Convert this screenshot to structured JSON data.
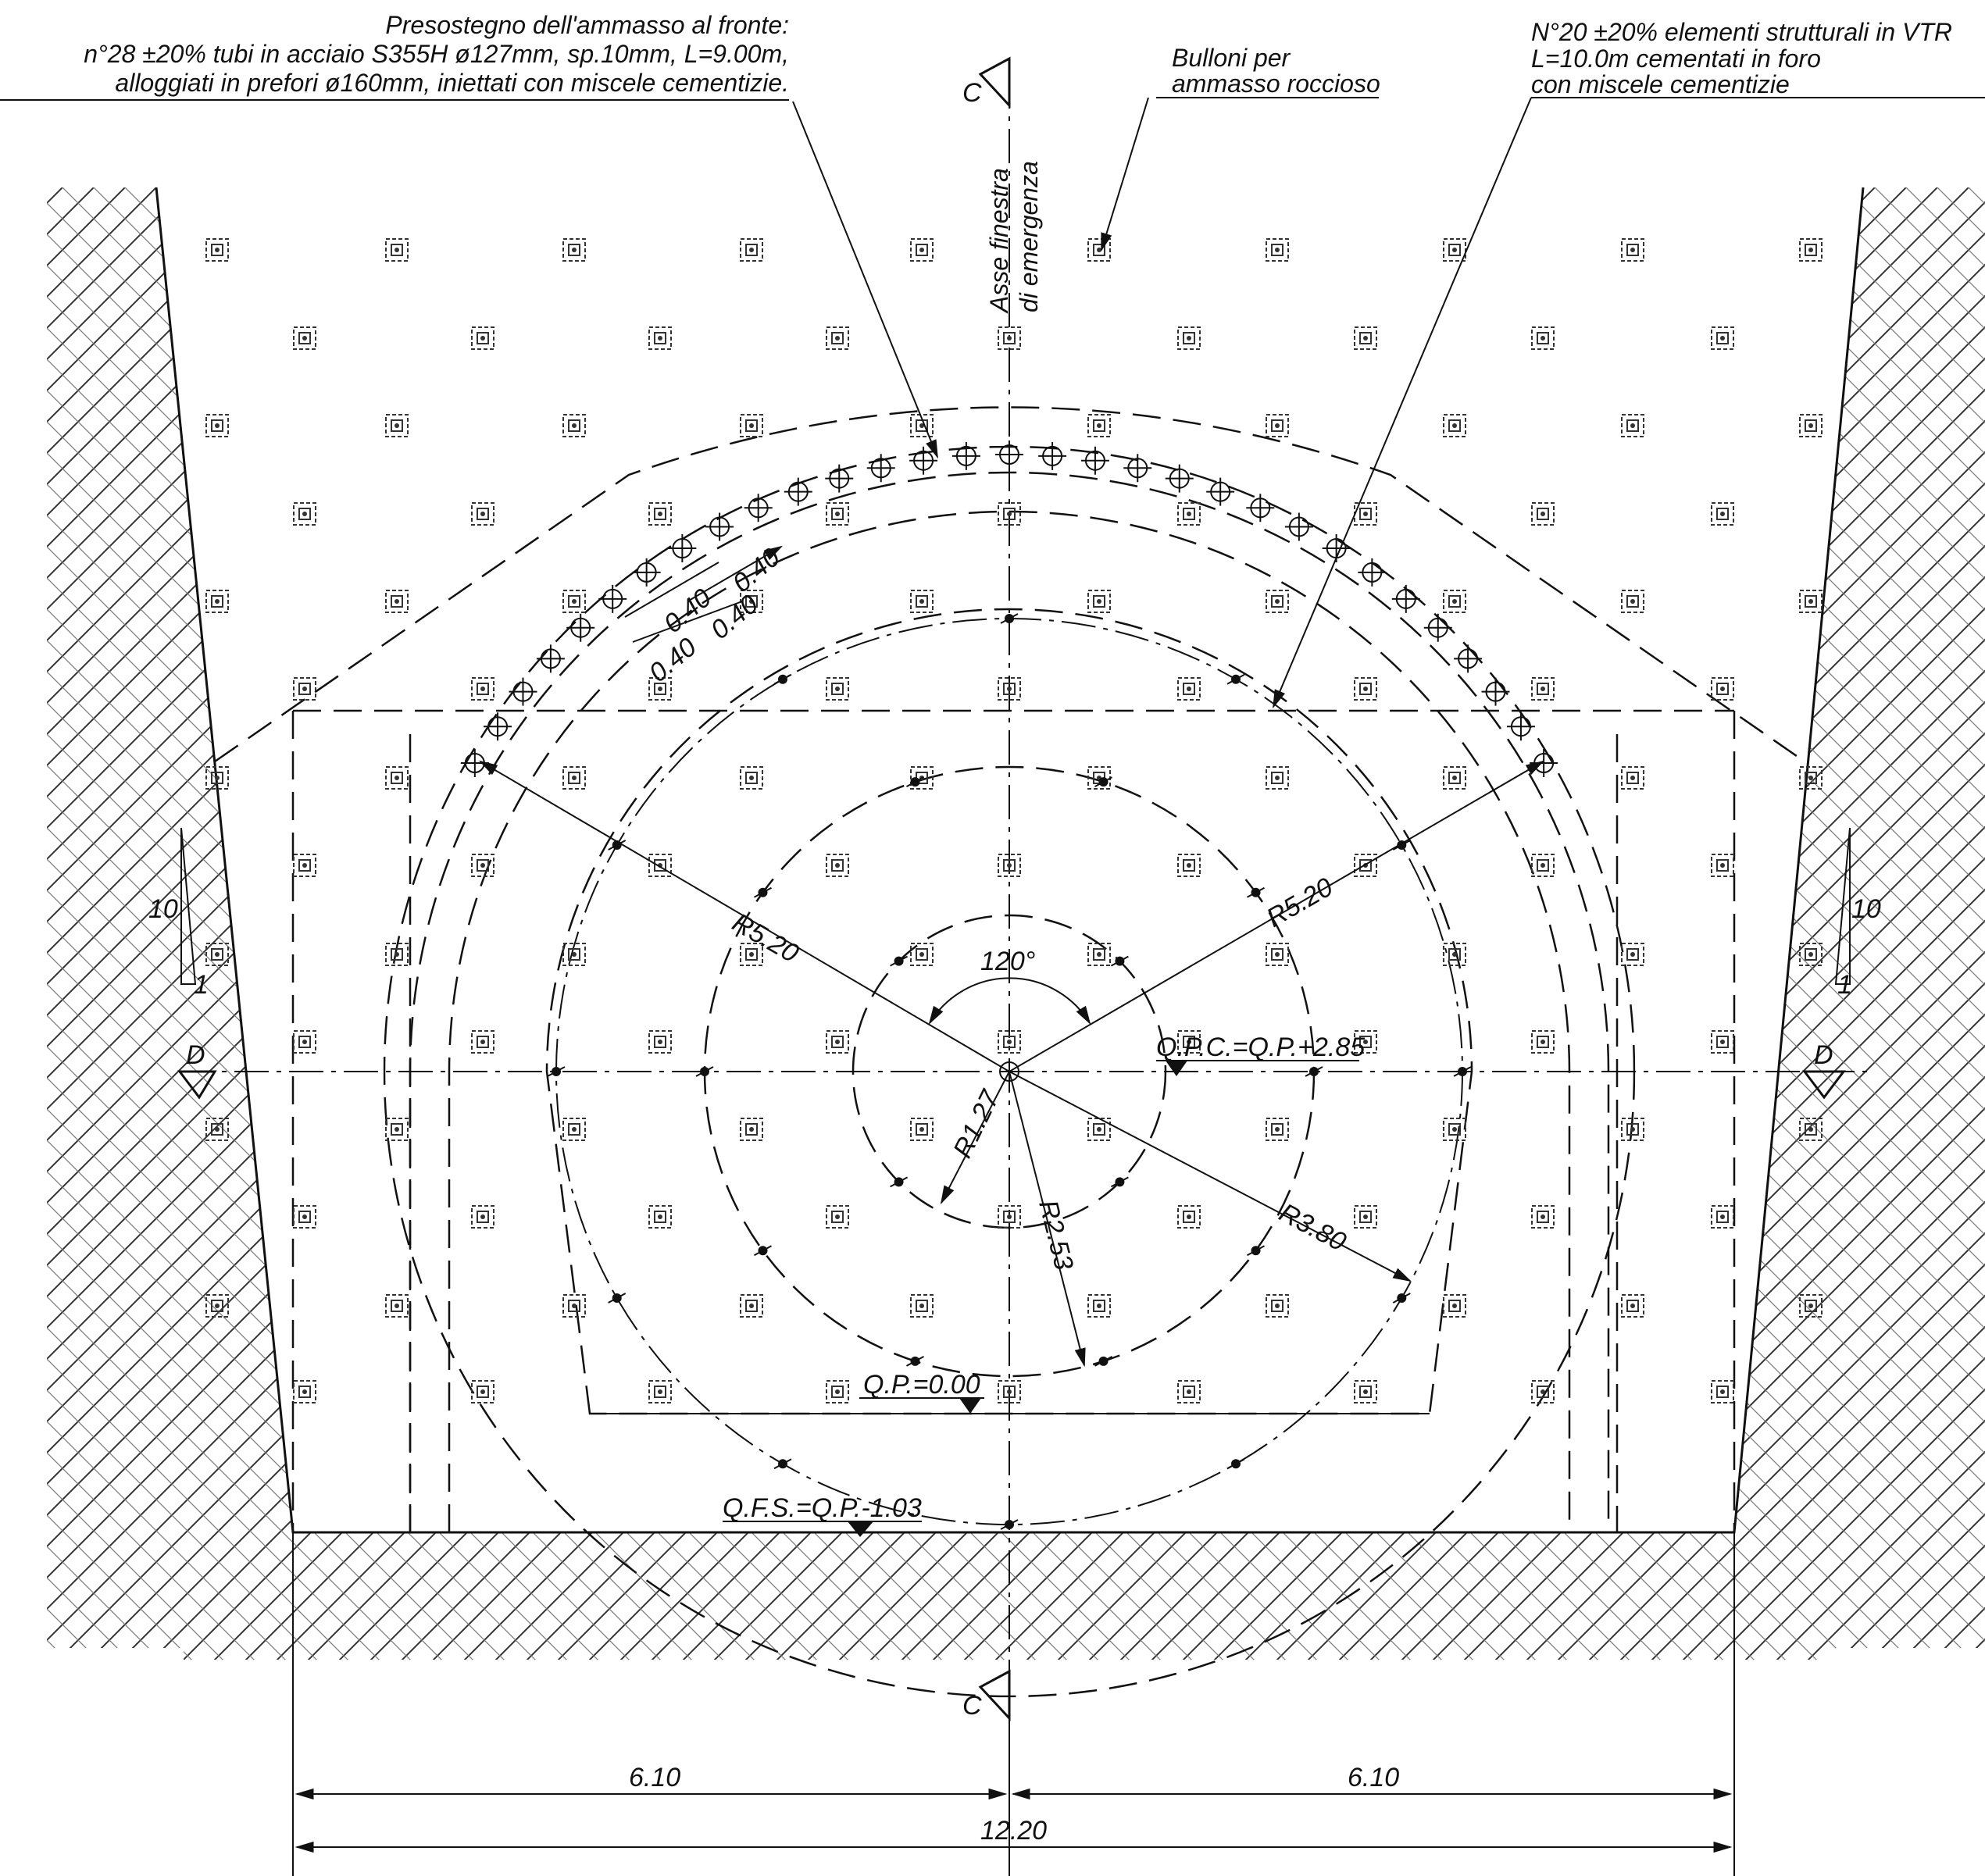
{
  "annotations": {
    "top_left": [
      "Presostegno dell'ammasso al fronte:",
      "n°28 ±20% tubi in acciaio S355H ø127mm, sp.10mm, L=9.00m,",
      "alloggiati in prefori ø160mm, iniettati con miscele cementizie."
    ],
    "bolts": [
      "Bulloni per",
      "ammasso roccioso"
    ],
    "top_right": [
      "N°20 ±20% elementi strutturali in VTR",
      "L=10.0m cementati in foro",
      "con miscele cementizie"
    ],
    "axis": [
      "Asse finestra",
      "di emergenza"
    ]
  },
  "section_marks": {
    "c": "C",
    "d": "D"
  },
  "slope": {
    "rise": "10",
    "run": "1"
  },
  "radii": {
    "r520": "R5.20",
    "r380": "R3.80",
    "r253": "R2.53",
    "r127": "R1.27"
  },
  "angle": "120°",
  "spacing": "0.40",
  "levels": {
    "opc": "Q.P.C.=Q.P.+2.85",
    "op": "Q.P.=0.00",
    "ofs": "Q.F.S.=Q.P.-1.03"
  },
  "dimensions": {
    "left": "6.10",
    "right": "6.10",
    "total": "12.20"
  },
  "icons": {
    "bolt": "bolt-square-icon",
    "tube": "crossed-circle-icon",
    "element": "dot-icon"
  }
}
